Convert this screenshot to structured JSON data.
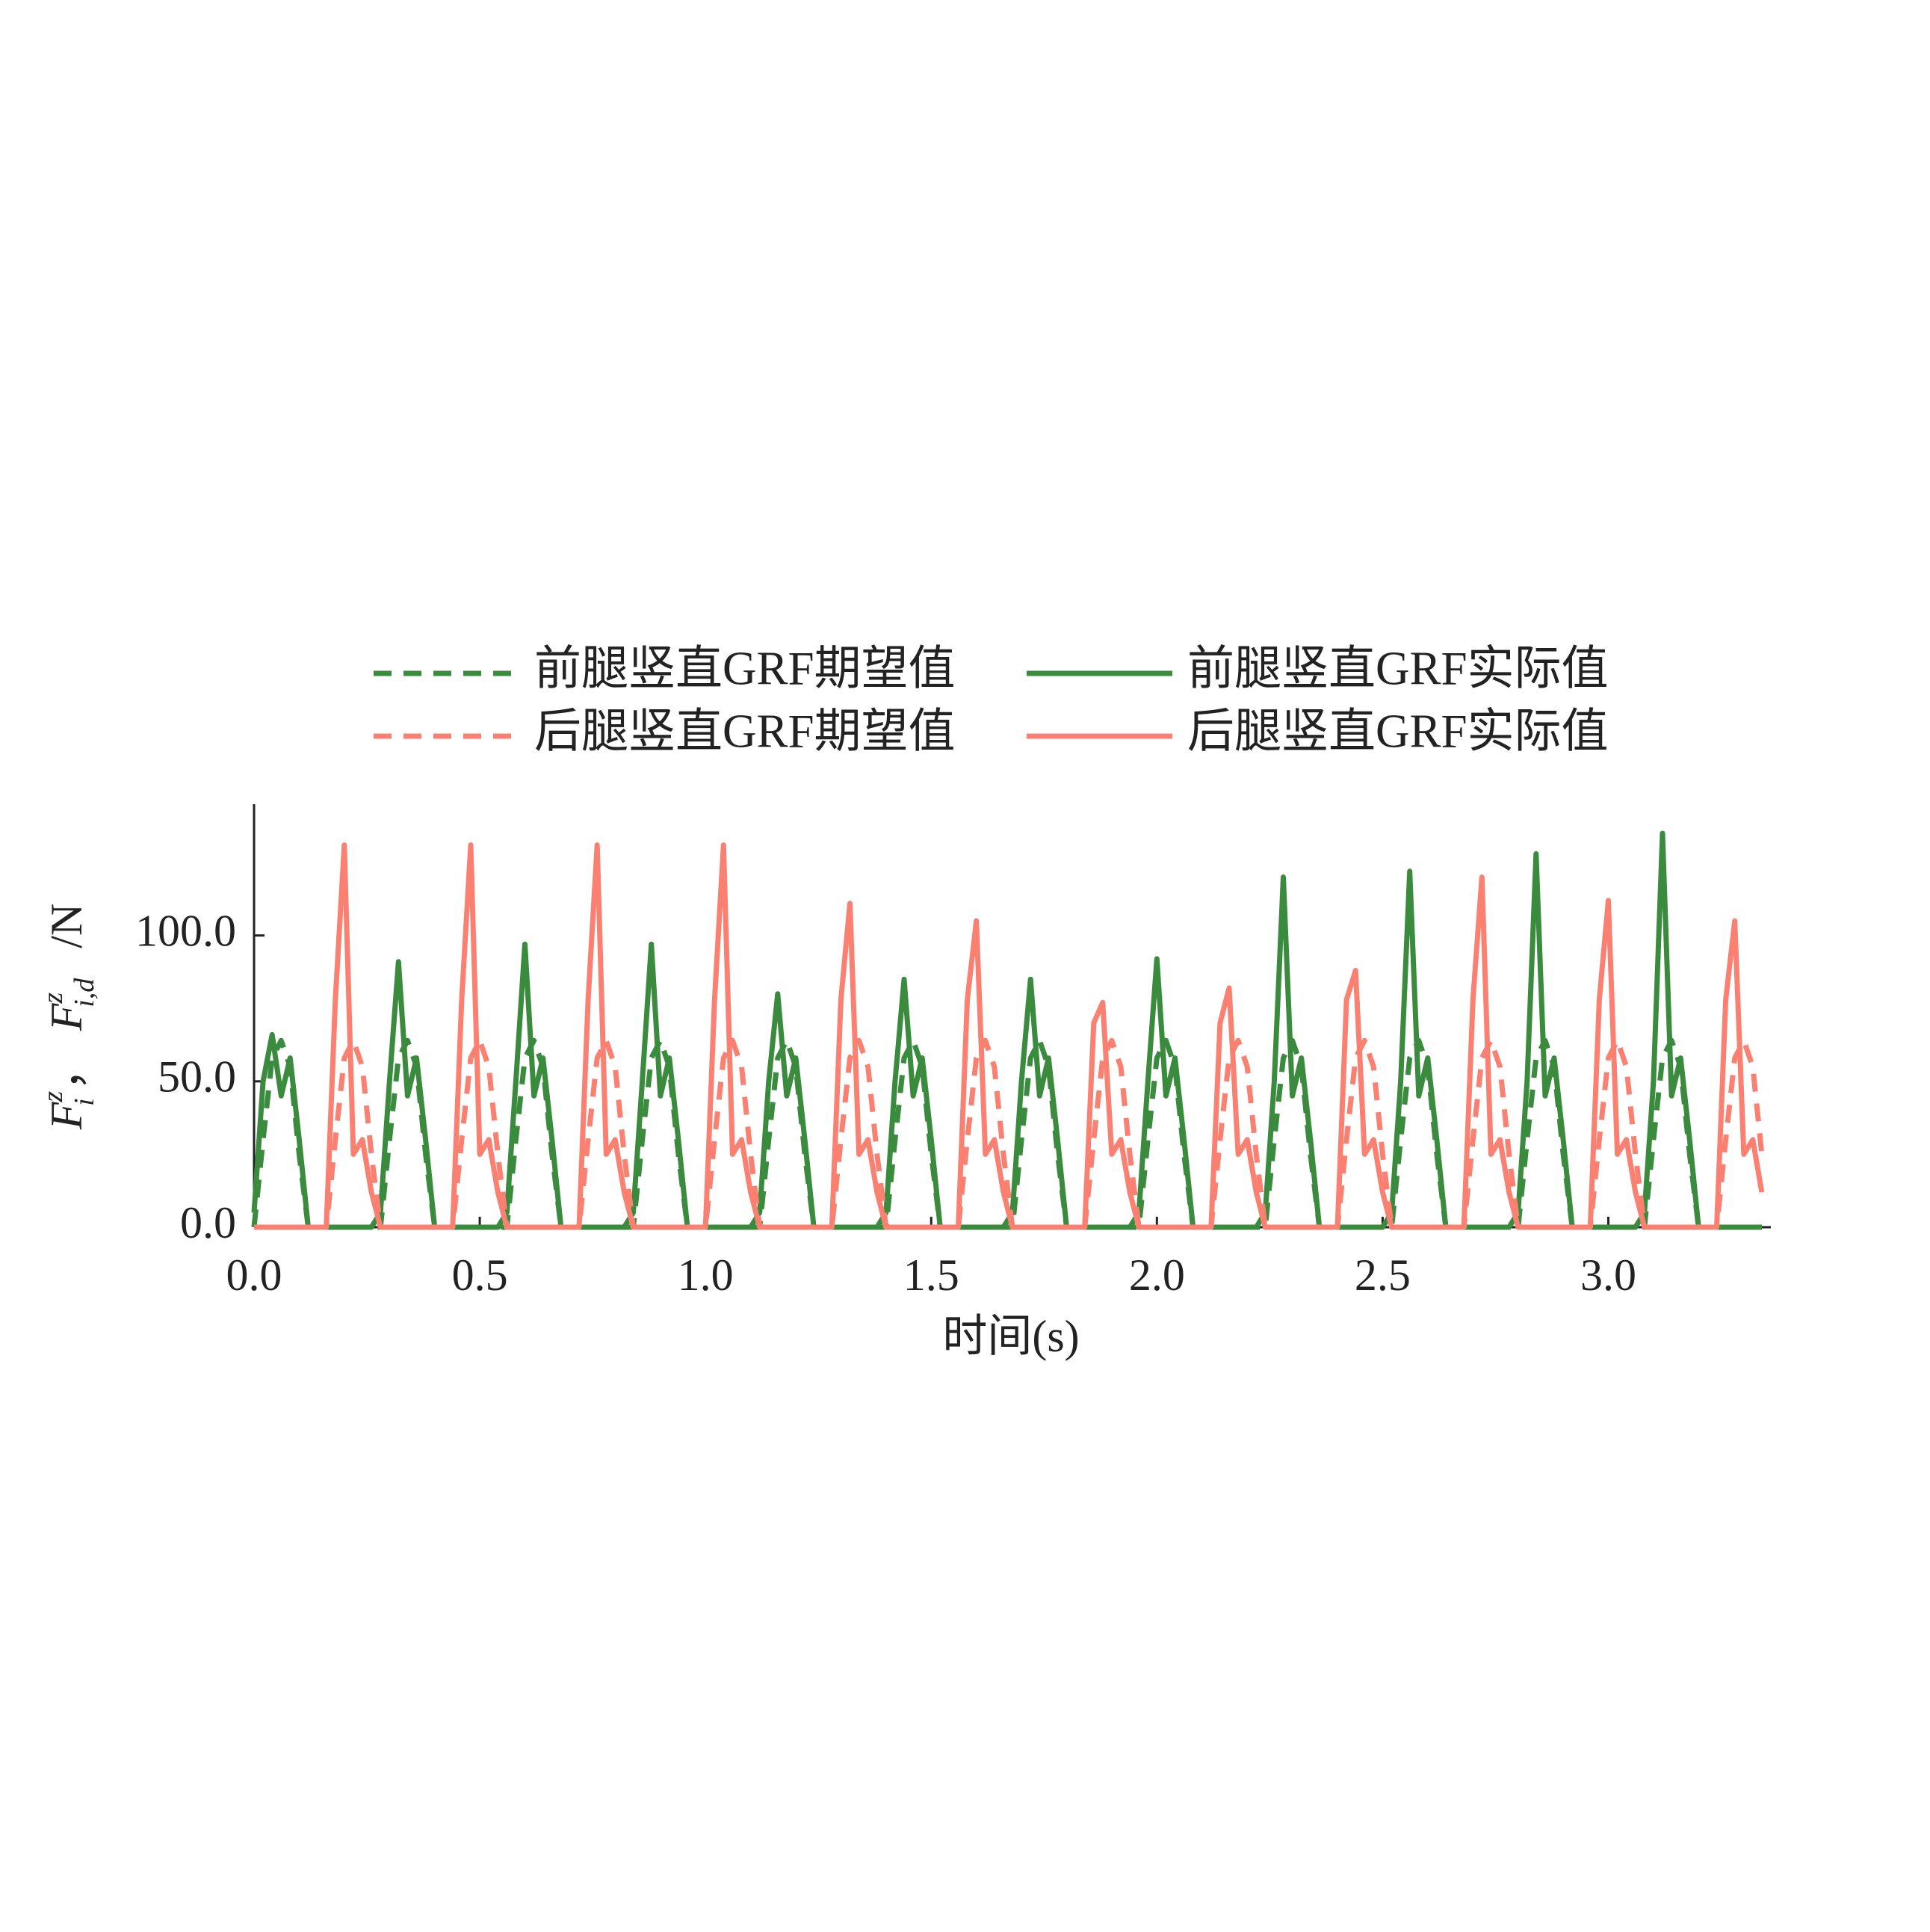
{
  "chart_data": {
    "type": "line",
    "x_label": "时间(s)",
    "y_label": [
      "F",
      "z",
      "i",
      "，",
      "F",
      "z",
      "i,d",
      "/N"
    ],
    "x": [
      0,
      0.02,
      0.04,
      0.06,
      0.08,
      0.1,
      0.12,
      0.14,
      0.16,
      0.18,
      0.2,
      0.22,
      0.24,
      0.26,
      0.28,
      0.3,
      0.32,
      0.34,
      0.36,
      0.38,
      0.4,
      0.42,
      0.44,
      0.46,
      0.48,
      0.5,
      0.52,
      0.54,
      0.56,
      0.58,
      0.6,
      0.62,
      0.64,
      0.66,
      0.68,
      0.7,
      0.72,
      0.74,
      0.76,
      0.78,
      0.8,
      0.82,
      0.84,
      0.86,
      0.88,
      0.9,
      0.92,
      0.94,
      0.96,
      0.98,
      1,
      1.02,
      1.04,
      1.06,
      1.08,
      1.1,
      1.12,
      1.14,
      1.16,
      1.18,
      1.2,
      1.22,
      1.24,
      1.26,
      1.28,
      1.3,
      1.32,
      1.34,
      1.36,
      1.38,
      1.4,
      1.42,
      1.44,
      1.46,
      1.48,
      1.5,
      1.52,
      1.54,
      1.56,
      1.58,
      1.6,
      1.62,
      1.64,
      1.66,
      1.68,
      1.7,
      1.72,
      1.74,
      1.76,
      1.78,
      1.8,
      1.82,
      1.84,
      1.86,
      1.88,
      1.9,
      1.92,
      1.94,
      1.96,
      1.98,
      2,
      2.02,
      2.04,
      2.06,
      2.08,
      2.1,
      2.12,
      2.14,
      2.16,
      2.18,
      2.2,
      2.22,
      2.24,
      2.26,
      2.28,
      2.3,
      2.32,
      2.34,
      2.36,
      2.38,
      2.4,
      2.42,
      2.44,
      2.46,
      2.48,
      2.5,
      2.52,
      2.54,
      2.56,
      2.58,
      2.6,
      2.62,
      2.64,
      2.66,
      2.68,
      2.7,
      2.72,
      2.74,
      2.76,
      2.78,
      2.8,
      2.82,
      2.84,
      2.86,
      2.88,
      2.9,
      2.92,
      2.94,
      2.96,
      2.98,
      3,
      3.02,
      3.04,
      3.06,
      3.08,
      3.1,
      3.12,
      3.14,
      3.16,
      3.18,
      3.2,
      3.22,
      3.24,
      3.26,
      3.28,
      3.3,
      3.32,
      3.34
    ],
    "series": [
      {
        "name": "前腿竖直GRF期望值",
        "color": "#3b8b3f",
        "dashed": true,
        "values": [
          0,
          30,
          58,
          64,
          55,
          25,
          0,
          0,
          0,
          0,
          0,
          0,
          0,
          0,
          0,
          30,
          58,
          64,
          55,
          25,
          0,
          0,
          0,
          0,
          0,
          0,
          0,
          0,
          0,
          30,
          58,
          64,
          55,
          25,
          0,
          0,
          0,
          0,
          0,
          0,
          0,
          0,
          0,
          30,
          58,
          64,
          55,
          25,
          0,
          0,
          0,
          0,
          0,
          0,
          0,
          0,
          0,
          30,
          58,
          64,
          55,
          25,
          0,
          0,
          0,
          0,
          0,
          0,
          0,
          0,
          0,
          30,
          58,
          64,
          55,
          25,
          0,
          0,
          0,
          0,
          0,
          0,
          0,
          0,
          0,
          30,
          58,
          64,
          55,
          25,
          0,
          0,
          0,
          0,
          0,
          0,
          0,
          0,
          0,
          30,
          58,
          64,
          55,
          25,
          0,
          0,
          0,
          0,
          0,
          0,
          0,
          0,
          0,
          30,
          58,
          64,
          55,
          25,
          0,
          0,
          0,
          0,
          0,
          0,
          0,
          0,
          0,
          30,
          58,
          64,
          55,
          25,
          0,
          0,
          0,
          0,
          0,
          0,
          0,
          0,
          0,
          30,
          58,
          64,
          55,
          25,
          0,
          0,
          0,
          0,
          0,
          0,
          0,
          0,
          0,
          30,
          58,
          64,
          55,
          25,
          0,
          0,
          0,
          0,
          0,
          0,
          0,
          0
        ]
      },
      {
        "name": "前腿竖直GRF实际值",
        "color": "#3b8b3f",
        "dashed": false,
        "values": [
          5,
          50,
          66,
          45,
          58,
          30,
          0,
          0,
          0,
          0,
          0,
          0,
          0,
          0,
          5,
          50,
          91,
          45,
          58,
          30,
          0,
          0,
          0,
          0,
          0,
          0,
          0,
          0,
          5,
          50,
          97,
          45,
          58,
          30,
          0,
          0,
          0,
          0,
          0,
          0,
          0,
          0,
          5,
          50,
          97,
          45,
          58,
          30,
          0,
          0,
          0,
          0,
          0,
          0,
          0,
          0,
          5,
          50,
          80,
          45,
          58,
          30,
          0,
          0,
          0,
          0,
          0,
          0,
          0,
          0,
          5,
          50,
          85,
          45,
          58,
          30,
          0,
          0,
          0,
          0,
          0,
          0,
          0,
          0,
          5,
          50,
          85,
          45,
          58,
          30,
          0,
          0,
          0,
          0,
          0,
          0,
          0,
          0,
          5,
          50,
          92,
          45,
          58,
          30,
          0,
          0,
          0,
          0,
          0,
          0,
          0,
          0,
          5,
          50,
          120,
          45,
          58,
          30,
          0,
          0,
          0,
          0,
          0,
          0,
          0,
          0,
          5,
          50,
          122,
          45,
          58,
          30,
          0,
          0,
          0,
          0,
          0,
          0,
          0,
          0,
          5,
          50,
          128,
          45,
          58,
          30,
          0,
          0,
          0,
          0,
          0,
          0,
          0,
          0,
          5,
          50,
          135,
          45,
          58,
          30,
          0,
          0,
          0,
          0,
          0,
          0,
          0,
          0
        ]
      },
      {
        "name": "后腿竖直GRF期望值",
        "color": "#fa8072",
        "dashed": true,
        "values": [
          0,
          0,
          0,
          0,
          0,
          0,
          0,
          0,
          0,
          30,
          58,
          64,
          55,
          25,
          0,
          0,
          0,
          0,
          0,
          0,
          0,
          0,
          0,
          30,
          58,
          64,
          55,
          25,
          0,
          0,
          0,
          0,
          0,
          0,
          0,
          0,
          0,
          30,
          58,
          64,
          55,
          25,
          0,
          0,
          0,
          0,
          0,
          0,
          0,
          0,
          0,
          30,
          58,
          64,
          55,
          25,
          0,
          0,
          0,
          0,
          0,
          0,
          0,
          0,
          0,
          30,
          58,
          64,
          55,
          25,
          0,
          0,
          0,
          0,
          0,
          0,
          0,
          0,
          0,
          30,
          58,
          64,
          55,
          25,
          0,
          0,
          0,
          0,
          0,
          0,
          0,
          0,
          0,
          30,
          58,
          64,
          55,
          25,
          0,
          0,
          0,
          0,
          0,
          0,
          0,
          0,
          0,
          30,
          58,
          64,
          55,
          25,
          0,
          0,
          0,
          0,
          0,
          0,
          0,
          0,
          0,
          30,
          58,
          64,
          55,
          25,
          0,
          0,
          0,
          0,
          0,
          0,
          0,
          0,
          0,
          30,
          58,
          64,
          55,
          25,
          0,
          0,
          0,
          0,
          0,
          0,
          0,
          0,
          0,
          30,
          58,
          64,
          55,
          25,
          0,
          0,
          0,
          0,
          0,
          0,
          0,
          0,
          0,
          30,
          58,
          64,
          55,
          25
        ]
      },
      {
        "name": "后腿竖直GRF实际值",
        "color": "#fa8072",
        "dashed": false,
        "values": [
          0,
          0,
          0,
          0,
          0,
          0,
          0,
          0,
          0,
          78,
          131,
          25,
          30,
          12,
          0,
          0,
          0,
          0,
          0,
          0,
          0,
          0,
          0,
          78,
          131,
          25,
          30,
          12,
          0,
          0,
          0,
          0,
          0,
          0,
          0,
          0,
          0,
          78,
          131,
          25,
          30,
          12,
          0,
          0,
          0,
          0,
          0,
          0,
          0,
          0,
          0,
          78,
          131,
          25,
          30,
          12,
          0,
          0,
          0,
          0,
          0,
          0,
          0,
          0,
          0,
          78,
          111,
          25,
          30,
          12,
          0,
          0,
          0,
          0,
          0,
          0,
          0,
          0,
          0,
          78,
          105,
          25,
          30,
          12,
          0,
          0,
          0,
          0,
          0,
          0,
          0,
          0,
          0,
          70,
          77,
          25,
          30,
          12,
          0,
          0,
          0,
          0,
          0,
          0,
          0,
          0,
          0,
          70,
          82,
          25,
          30,
          12,
          0,
          0,
          0,
          0,
          0,
          0,
          0,
          0,
          0,
          78,
          88,
          25,
          30,
          12,
          0,
          0,
          0,
          0,
          0,
          0,
          0,
          0,
          0,
          78,
          120,
          25,
          30,
          12,
          0,
          0,
          0,
          0,
          0,
          0,
          0,
          0,
          0,
          78,
          112,
          25,
          30,
          12,
          0,
          0,
          0,
          0,
          0,
          0,
          0,
          0,
          0,
          78,
          105,
          25,
          30,
          12
        ]
      }
    ],
    "xlim": [
      0,
      3.36
    ],
    "xticks": [
      {
        "value": 0,
        "label": "0.0"
      },
      {
        "value": 0.5,
        "label": "0.5"
      },
      {
        "value": 1,
        "label": "1.0"
      },
      {
        "value": 1.5,
        "label": "1.5"
      },
      {
        "value": 2,
        "label": "2.0"
      },
      {
        "value": 2.5,
        "label": "2.5"
      },
      {
        "value": 3,
        "label": "3.0"
      }
    ],
    "ylim": [
      0,
      145
    ],
    "yticks": [
      {
        "value": 0,
        "label": "0.0"
      },
      {
        "value": 50,
        "label": "50.0"
      },
      {
        "value": 100,
        "label": "100.0"
      }
    ],
    "grid": false
  }
}
